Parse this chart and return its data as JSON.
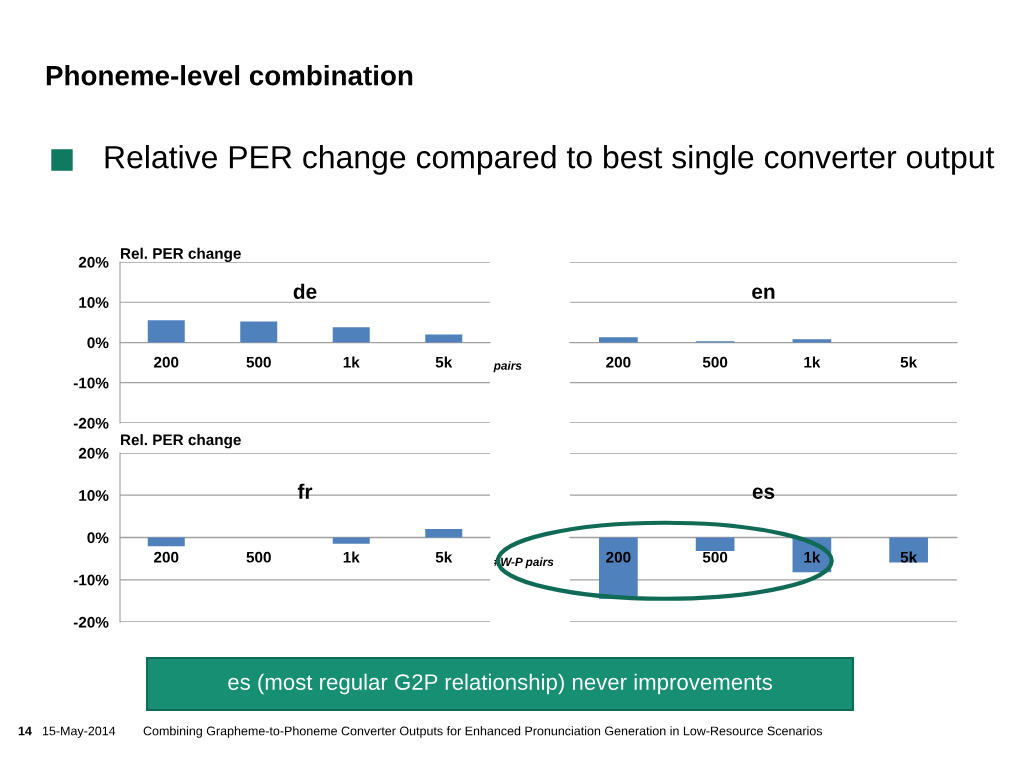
{
  "chart_data": [
    {
      "type": "bar",
      "title": "de",
      "ylabel": "Rel. PER change",
      "xlabel": "pairs",
      "categories": [
        "200",
        "500",
        "1k",
        "5k"
      ],
      "values": [
        5.5,
        5.2,
        3.8,
        2.0
      ],
      "color": "#4f81bd",
      "ylim": [
        -20,
        20
      ],
      "yticks": [
        {
          "value": -20,
          "label": "-20%"
        },
        {
          "value": -10,
          "label": "-10%"
        },
        {
          "value": 0,
          "label": "0%"
        },
        {
          "value": 10,
          "label": "10%"
        },
        {
          "value": 20,
          "label": "20%"
        }
      ],
      "grid": "y",
      "annotations": [
        "Phoneme-level combination",
        "Relative PER change compared to best single converter output"
      ]
    },
    {
      "type": "bar",
      "title": "en",
      "categories": [
        "200",
        "500",
        "1k",
        "5k"
      ],
      "values": [
        1.3,
        0.3,
        0.8,
        0
      ],
      "color": "#4f81bd",
      "ylim": [
        -20,
        20
      ],
      "yticks": [
        {
          "value": -20,
          "label": null
        },
        {
          "value": -10,
          "label": null
        },
        {
          "value": 0,
          "label": null
        },
        {
          "value": 10,
          "label": null
        },
        {
          "value": 20,
          "label": null
        }
      ],
      "grid": "y",
      "tick_labels": "x"
    },
    {
      "type": "bar",
      "title": "fr",
      "ylabel": "Rel. PER change",
      "xlabel": "#W-P pairs",
      "categories": [
        "200",
        "500",
        "1k",
        "5k"
      ],
      "values": [
        -2.1,
        0,
        -1.5,
        2.0
      ],
      "color": "#4f81bd",
      "ylim": [
        -20,
        20
      ],
      "yticks": [
        {
          "value": -20,
          "label": "-20%"
        },
        {
          "value": -10,
          "label": "-10%"
        },
        {
          "value": 0,
          "label": "0%"
        },
        {
          "value": 10,
          "label": "10%"
        },
        {
          "value": 20,
          "label": "20%"
        }
      ],
      "grid": "y"
    },
    {
      "type": "bar",
      "title": "es",
      "categories": [
        "200",
        "500",
        "1k",
        "5k"
      ],
      "values": [
        -14.5,
        -3.2,
        -8.2,
        -5.9
      ],
      "color": "#4f81bd",
      "ylim": [
        -20,
        20
      ],
      "yticks": [
        {
          "value": -20,
          "label": null
        },
        {
          "value": -10,
          "label": null
        },
        {
          "value": 0,
          "label": null
        },
        {
          "value": 10,
          "label": null
        },
        {
          "value": 20,
          "label": null
        }
      ],
      "grid": "y",
      "tick_labels": "x",
      "annotations": [
        "es (most regular G2P relationship) never improvements",
        "14",
        "15-May-2014",
        "Combining Grapheme-to-Phoneme Converter Outputs for Enhanced Pronunciation Generation in Low-Resource Scenarios"
      ]
    }
  ]
}
